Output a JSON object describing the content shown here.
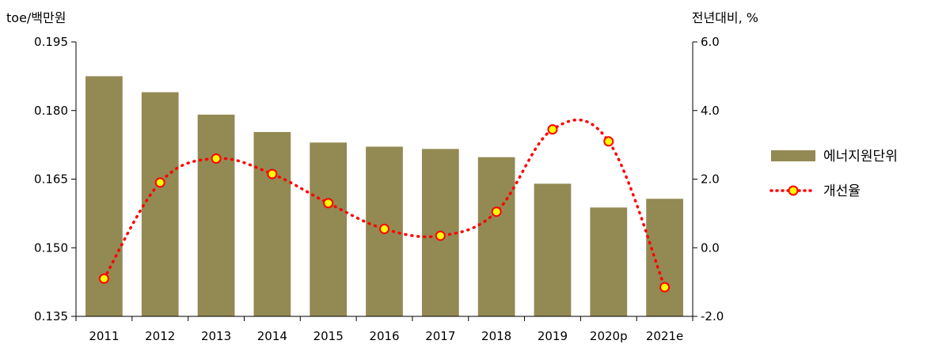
{
  "chart_data": {
    "type": "bar+line",
    "categories": [
      "2011",
      "2012",
      "2013",
      "2014",
      "2015",
      "2016",
      "2017",
      "2018",
      "2019",
      "2020p",
      "2021e"
    ],
    "series": [
      {
        "name": "에너지원단위",
        "type": "bar",
        "axis": "left",
        "color": "#938953",
        "values": [
          0.1875,
          0.184,
          0.1791,
          0.1753,
          0.173,
          0.1721,
          0.1716,
          0.1698,
          0.164,
          0.1588,
          0.1607
        ]
      },
      {
        "name": "개선율",
        "type": "line",
        "axis": "right",
        "line_color": "#ff0000",
        "line_style": "dotted",
        "marker_fill": "#ffff00",
        "marker_edge": "#ff0000",
        "values": [
          -0.9,
          1.9,
          2.6,
          2.15,
          1.3,
          0.55,
          0.35,
          1.05,
          3.45,
          3.1,
          -1.15
        ]
      }
    ],
    "left_axis": {
      "unit_label": "toe/백만원",
      "ylim": [
        0.135,
        0.195
      ],
      "ticks": [
        "0.195",
        "0.180",
        "0.165",
        "0.150",
        "0.135"
      ],
      "tick_values": [
        0.195,
        0.18,
        0.165,
        0.15,
        0.135
      ]
    },
    "right_axis": {
      "unit_label": "전년대비, %",
      "ylim": [
        -2.0,
        6.0
      ],
      "ticks": [
        "6.0",
        "4.0",
        "2.0",
        "0.0",
        "-2.0"
      ],
      "tick_values": [
        6.0,
        4.0,
        2.0,
        0.0,
        -2.0
      ]
    },
    "legend": {
      "placement": "right",
      "items": [
        "에너지원단위",
        "개선율"
      ]
    },
    "grid": false
  }
}
